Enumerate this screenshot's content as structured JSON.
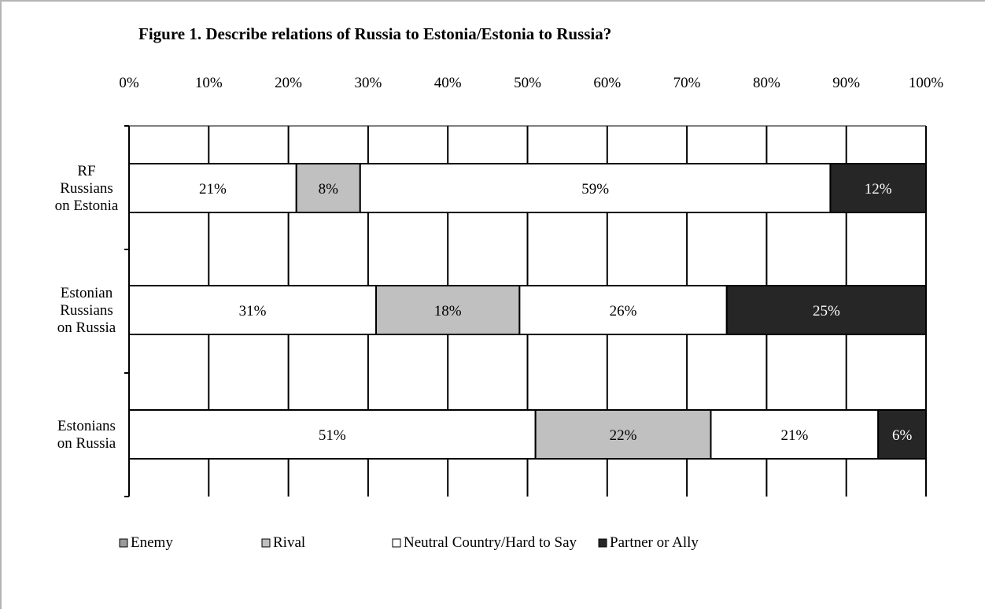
{
  "chart_data": {
    "type": "bar",
    "orientation": "horizontal",
    "stacked": true,
    "percent_stacked": true,
    "title": "Figure 1. Describe relations of Russia to Estonia/Estonia to Russia?",
    "xlabel": "",
    "ylabel": "",
    "xlim": [
      0,
      100
    ],
    "x_ticks": [
      "0%",
      "10%",
      "20%",
      "30%",
      "40%",
      "50%",
      "60%",
      "70%",
      "80%",
      "90%",
      "100%"
    ],
    "grid": true,
    "legend_position": "bottom",
    "categories": [
      [
        "RF",
        "Russians",
        "on Estonia"
      ],
      [
        "Estonian",
        "Russians",
        "on Russia"
      ],
      [
        "Estonians",
        "on Russia"
      ]
    ],
    "series": [
      {
        "name": "Enemy",
        "color": "#a6a6a6",
        "values": [
          21,
          31,
          51
        ],
        "labels": [
          "21%",
          "31%",
          "51%"
        ],
        "label_color": "#000000"
      },
      {
        "name": "Rival",
        "color": "#c0c0c0",
        "values": [
          8,
          18,
          22
        ],
        "labels": [
          "8%",
          "18%",
          "22%"
        ],
        "label_color": "#000000"
      },
      {
        "name": "Neutral Country/Hard to Say",
        "color": "#ffffff",
        "values": [
          59,
          26,
          21
        ],
        "labels": [
          "59%",
          "26%",
          "21%"
        ],
        "label_color": "#000000"
      },
      {
        "name": "Partner or Ally",
        "color": "#262626",
        "values": [
          12,
          25,
          6
        ],
        "labels": [
          "12%",
          "25%",
          "6%"
        ],
        "label_color": "#ffffff"
      }
    ],
    "first_segment_fill": "#ffffff",
    "legend_colors": [
      "#9a9a9a",
      "#c0c0c0",
      "#ffffff",
      "#262626"
    ]
  }
}
